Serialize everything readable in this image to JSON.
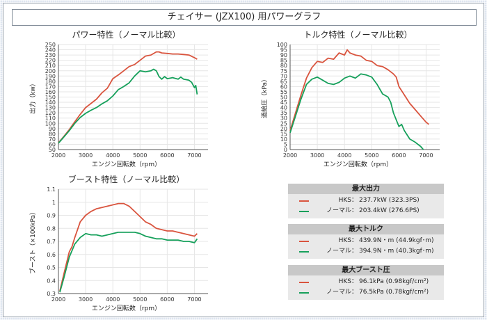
{
  "header": {
    "title": "チェイサー (JZX100) 用パワーグラフ"
  },
  "colors": {
    "hks": "#d9543e",
    "normal": "#16a05b"
  },
  "chart_data": [
    {
      "type": "line",
      "title": "パワー特性（ノーマル比較）",
      "xlabel": "エンジン回転数（rpm）",
      "ylabel": "出力（kw）",
      "xlim": [
        2000,
        7500
      ],
      "ylim": [
        50,
        250
      ],
      "xticks": [
        "2000",
        "3000",
        "4000",
        "5000",
        "6000",
        "7000"
      ],
      "yticks": [
        "50",
        "60",
        "70",
        "80",
        "90",
        "100",
        "110",
        "120",
        "130",
        "140",
        "150",
        "160",
        "170",
        "180",
        "190",
        "200",
        "210",
        "220",
        "230",
        "240",
        "250"
      ],
      "grid": true,
      "series": [
        {
          "name": "HKS",
          "color": "#d9543e",
          "points": [
            [
              2000,
              63
            ],
            [
              2200,
              75
            ],
            [
              2400,
              88
            ],
            [
              2600,
              103
            ],
            [
              2800,
              117
            ],
            [
              3000,
              130
            ],
            [
              3200,
              138
            ],
            [
              3400,
              146
            ],
            [
              3600,
              158
            ],
            [
              3800,
              167
            ],
            [
              3900,
              176
            ],
            [
              4000,
              185
            ],
            [
              4200,
              192
            ],
            [
              4400,
              200
            ],
            [
              4600,
              208
            ],
            [
              4800,
              212
            ],
            [
              5000,
              220
            ],
            [
              5200,
              228
            ],
            [
              5400,
              230
            ],
            [
              5600,
              236
            ],
            [
              5700,
              236
            ],
            [
              5800,
              234
            ],
            [
              6000,
              233
            ],
            [
              6200,
              232
            ],
            [
              6400,
              232
            ],
            [
              6600,
              231
            ],
            [
              6800,
              230
            ],
            [
              7000,
              225
            ],
            [
              7100,
              222
            ]
          ]
        },
        {
          "name": "ノーマル",
          "color": "#16a05b",
          "points": [
            [
              2000,
              62
            ],
            [
              2200,
              74
            ],
            [
              2400,
              86
            ],
            [
              2600,
              100
            ],
            [
              2800,
              111
            ],
            [
              3000,
              119
            ],
            [
              3200,
              125
            ],
            [
              3400,
              130
            ],
            [
              3600,
              137
            ],
            [
              3800,
              143
            ],
            [
              4000,
              152
            ],
            [
              4200,
              164
            ],
            [
              4400,
              170
            ],
            [
              4600,
              177
            ],
            [
              4800,
              190
            ],
            [
              5000,
              200
            ],
            [
              5200,
              198
            ],
            [
              5400,
              200
            ],
            [
              5500,
              203
            ],
            [
              5600,
              200
            ],
            [
              5700,
              189
            ],
            [
              5800,
              184
            ],
            [
              5900,
              189
            ],
            [
              6000,
              185
            ],
            [
              6200,
              187
            ],
            [
              6400,
              184
            ],
            [
              6500,
              188
            ],
            [
              6600,
              184
            ],
            [
              6800,
              182
            ],
            [
              6900,
              178
            ],
            [
              7000,
              168
            ],
            [
              7050,
              172
            ],
            [
              7100,
              155
            ]
          ]
        }
      ]
    },
    {
      "type": "line",
      "title": "トルク特性（ノーマル比較）",
      "xlabel": "エンジン回転数（rpm）",
      "ylabel": "過給圧（kPa）",
      "xlim": [
        2000,
        7500
      ],
      "ylim": [
        0,
        100
      ],
      "xticks": [
        "2000",
        "3000",
        "4000",
        "5000",
        "6000",
        "7000"
      ],
      "yticks": [
        "0",
        "5",
        "10",
        "15",
        "20",
        "25",
        "30",
        "35",
        "40",
        "45",
        "50",
        "55",
        "60",
        "65",
        "70",
        "75",
        "80",
        "85",
        "90",
        "95",
        "100"
      ],
      "grid": true,
      "series": [
        {
          "name": "HKS",
          "color": "#d9543e",
          "points": [
            [
              2000,
              18
            ],
            [
              2200,
              35
            ],
            [
              2400,
              52
            ],
            [
              2600,
              68
            ],
            [
              2800,
              78
            ],
            [
              3000,
              84
            ],
            [
              3200,
              83
            ],
            [
              3400,
              87
            ],
            [
              3600,
              86
            ],
            [
              3800,
              92
            ],
            [
              4000,
              90
            ],
            [
              4100,
              95
            ],
            [
              4200,
              92
            ],
            [
              4400,
              90
            ],
            [
              4600,
              89
            ],
            [
              4800,
              85
            ],
            [
              5000,
              84
            ],
            [
              5200,
              80
            ],
            [
              5400,
              79
            ],
            [
              5600,
              76
            ],
            [
              5800,
              72
            ],
            [
              5900,
              69
            ],
            [
              6000,
              60
            ],
            [
              6200,
              52
            ],
            [
              6400,
              44
            ],
            [
              6600,
              38
            ],
            [
              6800,
              32
            ],
            [
              7000,
              26
            ],
            [
              7100,
              24
            ]
          ]
        },
        {
          "name": "ノーマル",
          "color": "#16a05b",
          "points": [
            [
              2000,
              16
            ],
            [
              2200,
              32
            ],
            [
              2400,
              48
            ],
            [
              2600,
              62
            ],
            [
              2800,
              67
            ],
            [
              3000,
              69
            ],
            [
              3200,
              66
            ],
            [
              3400,
              63
            ],
            [
              3600,
              62
            ],
            [
              3800,
              64
            ],
            [
              4000,
              68
            ],
            [
              4200,
              70
            ],
            [
              4400,
              68
            ],
            [
              4600,
              72
            ],
            [
              4800,
              71
            ],
            [
              5000,
              69
            ],
            [
              5200,
              62
            ],
            [
              5400,
              53
            ],
            [
              5600,
              50
            ],
            [
              5700,
              45
            ],
            [
              5800,
              35
            ],
            [
              6000,
              22
            ],
            [
              6100,
              24
            ],
            [
              6200,
              18
            ],
            [
              6400,
              10
            ],
            [
              6600,
              7
            ],
            [
              6800,
              3
            ],
            [
              6900,
              0
            ]
          ]
        }
      ]
    },
    {
      "type": "line",
      "title": "ブースト特性（ノーマル比較）",
      "xlabel": "エンジン回転数（rpm）",
      "ylabel": "ブースト（×100kPa）",
      "xlim": [
        2000,
        7500
      ],
      "ylim": [
        0.3,
        1.1
      ],
      "xticks": [
        "2000",
        "3000",
        "4000",
        "5000",
        "6000",
        "7000"
      ],
      "yticks": [
        "0.3",
        "0.4",
        "0.5",
        "0.6",
        "0.7",
        "0.8",
        "0.9",
        "1",
        "1.1"
      ],
      "grid": true,
      "series": [
        {
          "name": "HKS",
          "color": "#d9543e",
          "points": [
            [
              2050,
              0.32
            ],
            [
              2200,
              0.45
            ],
            [
              2400,
              0.62
            ],
            [
              2500,
              0.66
            ],
            [
              2600,
              0.73
            ],
            [
              2800,
              0.85
            ],
            [
              3000,
              0.9
            ],
            [
              3200,
              0.93
            ],
            [
              3400,
              0.95
            ],
            [
              3600,
              0.96
            ],
            [
              3800,
              0.97
            ],
            [
              4000,
              0.98
            ],
            [
              4200,
              0.99
            ],
            [
              4400,
              0.99
            ],
            [
              4600,
              0.97
            ],
            [
              4800,
              0.93
            ],
            [
              5000,
              0.89
            ],
            [
              5200,
              0.85
            ],
            [
              5400,
              0.83
            ],
            [
              5600,
              0.8
            ],
            [
              5800,
              0.79
            ],
            [
              6000,
              0.78
            ],
            [
              6200,
              0.78
            ],
            [
              6400,
              0.77
            ],
            [
              6600,
              0.76
            ],
            [
              6800,
              0.75
            ],
            [
              7000,
              0.74
            ],
            [
              7100,
              0.76
            ]
          ]
        },
        {
          "name": "ノーマル",
          "color": "#16a05b",
          "points": [
            [
              2050,
              0.31
            ],
            [
              2200,
              0.42
            ],
            [
              2400,
              0.58
            ],
            [
              2600,
              0.68
            ],
            [
              2800,
              0.73
            ],
            [
              3000,
              0.76
            ],
            [
              3200,
              0.75
            ],
            [
              3400,
              0.75
            ],
            [
              3600,
              0.74
            ],
            [
              3800,
              0.75
            ],
            [
              4000,
              0.76
            ],
            [
              4200,
              0.77
            ],
            [
              4400,
              0.77
            ],
            [
              4600,
              0.77
            ],
            [
              4800,
              0.77
            ],
            [
              5000,
              0.76
            ],
            [
              5200,
              0.74
            ],
            [
              5400,
              0.73
            ],
            [
              5600,
              0.72
            ],
            [
              5800,
              0.72
            ],
            [
              6000,
              0.71
            ],
            [
              6200,
              0.71
            ],
            [
              6400,
              0.71
            ],
            [
              6600,
              0.7
            ],
            [
              6800,
              0.7
            ],
            [
              7000,
              0.69
            ],
            [
              7100,
              0.72
            ]
          ]
        }
      ]
    }
  ],
  "summary": [
    {
      "title": "最大出力",
      "rows": [
        {
          "name": "HKS：",
          "value": "237.7kW (323.3PS)",
          "color": "#d9543e"
        },
        {
          "name": "ノーマル：",
          "value": "203.4kW (276.6PS)",
          "color": "#16a05b"
        }
      ]
    },
    {
      "title": "最大トルク",
      "rows": [
        {
          "name": "HKS：",
          "value": "439.9N・m (44.9kgf･m)",
          "color": "#d9543e"
        },
        {
          "name": "ノーマル：",
          "value": "394.9N・m (40.3kgf･m)",
          "color": "#16a05b"
        }
      ]
    },
    {
      "title": "最大ブースト圧",
      "rows": [
        {
          "name": "HKS：",
          "value": "96.1kPa (0.98kgf/cm²)",
          "color": "#d9543e"
        },
        {
          "name": "ノーマル：",
          "value": "76.5kPa (0.78kgf/cm²)",
          "color": "#16a05b"
        }
      ]
    }
  ]
}
